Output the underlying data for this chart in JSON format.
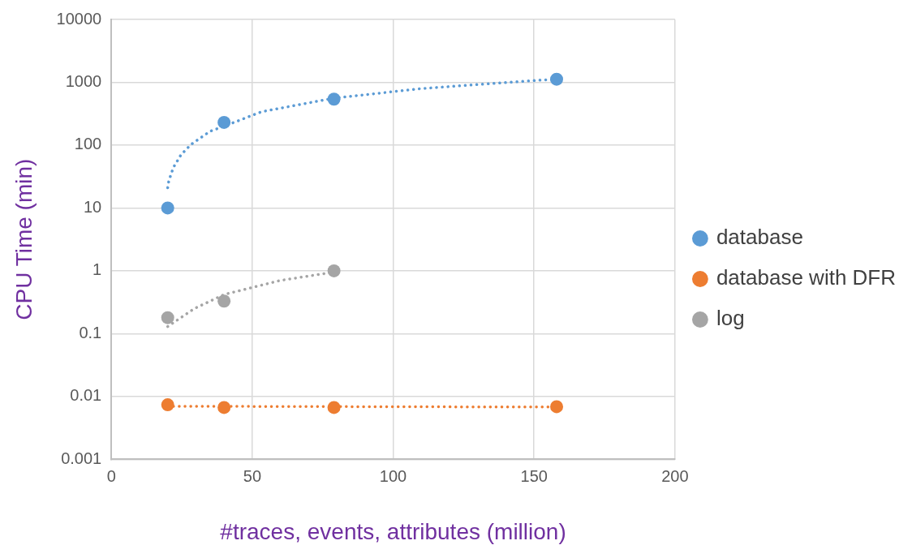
{
  "chart_data": {
    "type": "scatter",
    "xlabel": "#traces, events, attributes (million)",
    "ylabel": "CPU Time (min)",
    "x": [
      20,
      40,
      79,
      158
    ],
    "series": [
      {
        "name": "database",
        "color": "#5b9bd5",
        "values": [
          10,
          230,
          540,
          1120
        ]
      },
      {
        "name": "database with DFR",
        "color": "#ed7d31",
        "values": [
          0.0074,
          0.0067,
          0.0067,
          0.0069
        ]
      },
      {
        "name": "log",
        "color": "#a5a5a5",
        "values": [
          0.18,
          0.33,
          1,
          null
        ]
      },
      {
        "type": "line",
        "color": "#5b9bd5",
        "line_style": "dotted",
        "marker": "none",
        "x": [
          20,
          20.4,
          22,
          24.7,
          28.2,
          35,
          40,
          53.3,
          79,
          110,
          153,
          158
        ],
        "values": [
          21,
          27,
          44,
          70,
          102,
          166,
          200,
          340,
          560,
          795,
          1090,
          1110
        ]
      },
      {
        "type": "line",
        "color": "#ed7d31",
        "line_style": "dotted",
        "marker": "none",
        "x": [
          20,
          158
        ],
        "values": [
          0.007,
          0.0068
        ]
      },
      {
        "type": "line",
        "color": "#a5a5a5",
        "line_style": "dotted",
        "marker": "none",
        "x": [
          20,
          29.4,
          40,
          59.8,
          76,
          79
        ],
        "values": [
          0.13,
          0.25,
          0.42,
          0.7,
          0.91,
          1
        ]
      }
    ],
    "xlim": [
      0,
      200
    ],
    "xticks": [
      0,
      50,
      100,
      150,
      200
    ],
    "ylim": [
      0.001,
      10000
    ],
    "yticks": [
      0.001,
      0.01,
      0.1,
      1,
      10,
      100,
      1000,
      10000
    ],
    "log": "y",
    "grid": true,
    "legend": "right",
    "marker": "circle"
  }
}
